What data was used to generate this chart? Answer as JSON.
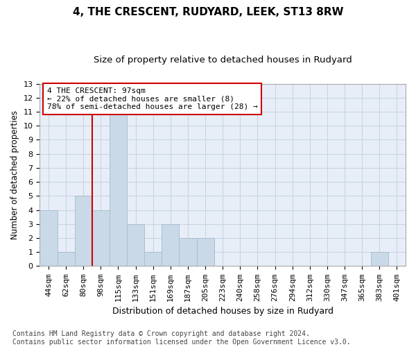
{
  "title": "4, THE CRESCENT, RUDYARD, LEEK, ST13 8RW",
  "subtitle": "Size of property relative to detached houses in Rudyard",
  "xlabel": "Distribution of detached houses by size in Rudyard",
  "ylabel": "Number of detached properties",
  "categories": [
    "44sqm",
    "62sqm",
    "80sqm",
    "98sqm",
    "115sqm",
    "133sqm",
    "151sqm",
    "169sqm",
    "187sqm",
    "205sqm",
    "223sqm",
    "240sqm",
    "258sqm",
    "276sqm",
    "294sqm",
    "312sqm",
    "330sqm",
    "347sqm",
    "365sqm",
    "383sqm",
    "401sqm"
  ],
  "values": [
    4,
    1,
    5,
    4,
    11,
    3,
    1,
    3,
    2,
    2,
    0,
    0,
    0,
    0,
    0,
    0,
    0,
    0,
    0,
    1,
    0
  ],
  "bar_color": "#c9d9e8",
  "bar_edge_color": "#a8bfcf",
  "property_line_index": 3,
  "property_line_color": "#cc0000",
  "annotation_text": "4 THE CRESCENT: 97sqm\n← 22% of detached houses are smaller (8)\n78% of semi-detached houses are larger (28) →",
  "annotation_box_facecolor": "#ffffff",
  "annotation_box_edgecolor": "#cc0000",
  "ylim": [
    0,
    13
  ],
  "yticks": [
    0,
    1,
    2,
    3,
    4,
    5,
    6,
    7,
    8,
    9,
    10,
    11,
    12,
    13
  ],
  "grid_color": "#c8d4e4",
  "background_color": "#e8eef8",
  "footer": "Contains HM Land Registry data © Crown copyright and database right 2024.\nContains public sector information licensed under the Open Government Licence v3.0.",
  "title_fontsize": 11,
  "subtitle_fontsize": 9.5,
  "ylabel_fontsize": 8.5,
  "xlabel_fontsize": 9,
  "tick_fontsize": 8,
  "annotation_fontsize": 8,
  "footer_fontsize": 7
}
